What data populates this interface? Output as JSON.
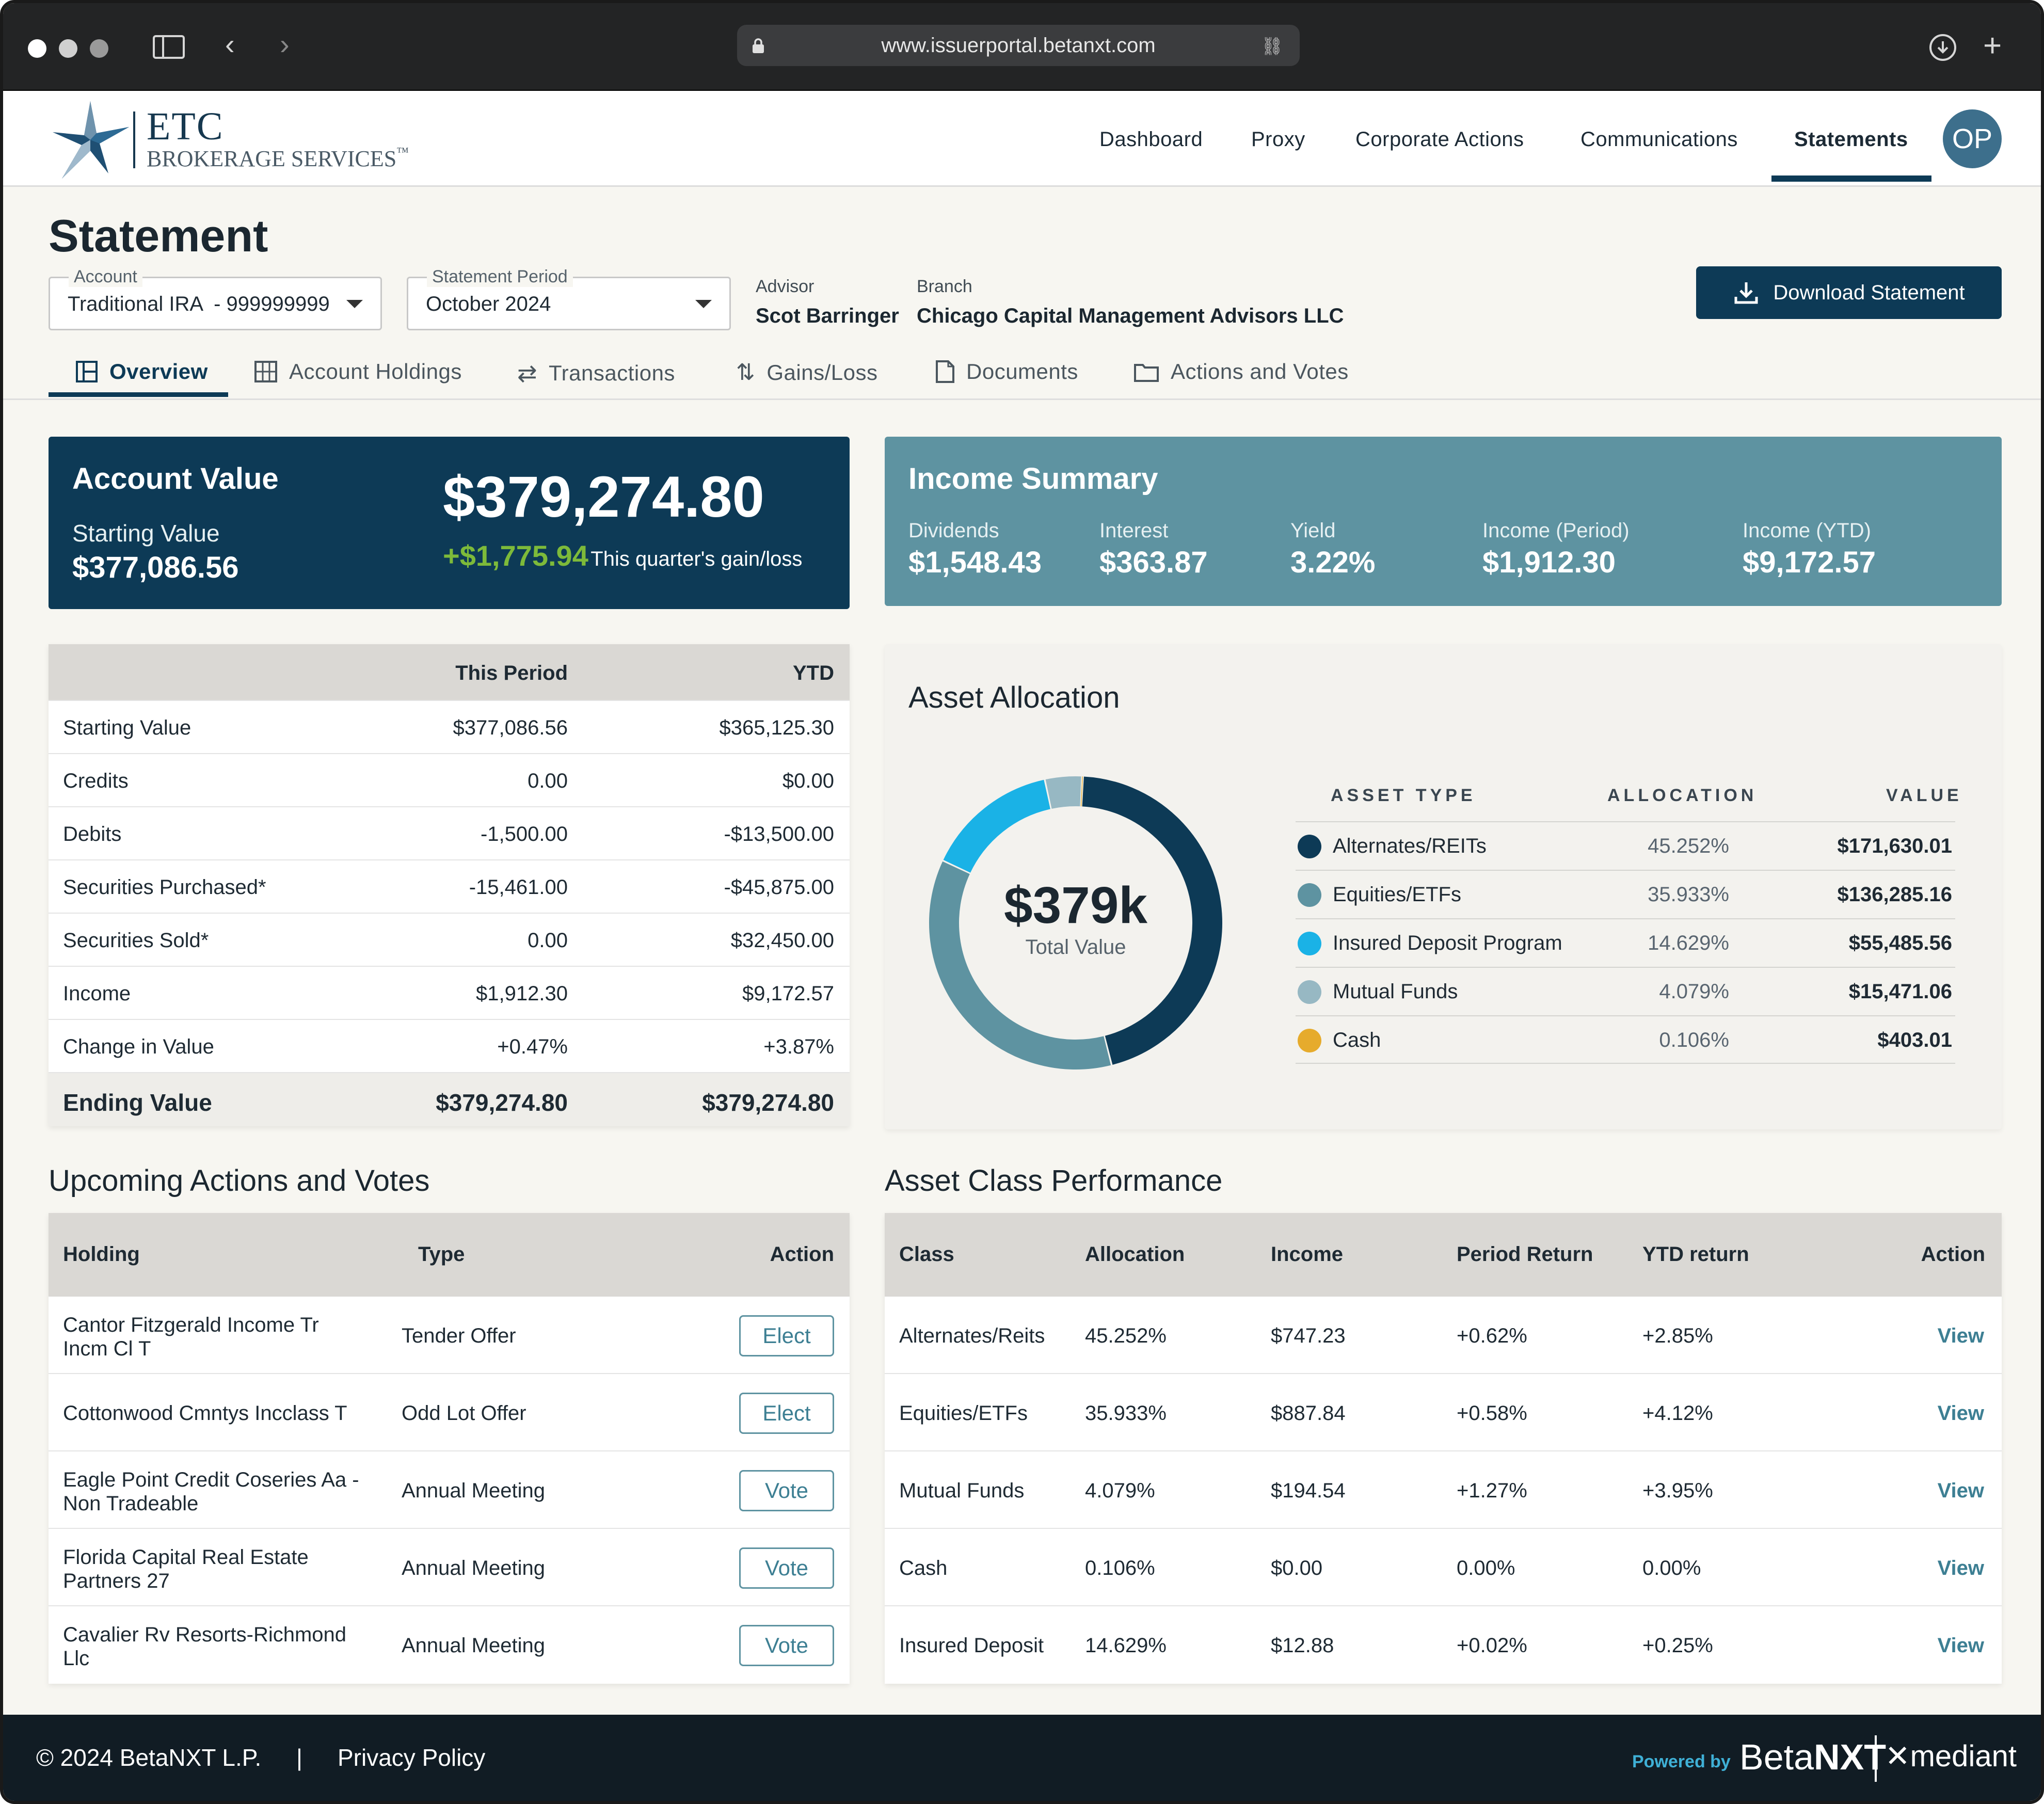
{
  "browser": {
    "url": "www.issuerportal.betanxt.com"
  },
  "brand": {
    "name": "ETC",
    "sub": "BROKERAGE SERVICES",
    "tm": "™"
  },
  "nav": {
    "items": [
      "Dashboard",
      "Proxy",
      "Corporate Actions",
      "Communications",
      "Statements"
    ],
    "active": "Statements",
    "avatar": "OP"
  },
  "page": {
    "title": "Statement"
  },
  "account": {
    "label": "Account",
    "value": "Traditional IRA  - 999999999"
  },
  "period": {
    "label": "Statement Period",
    "value": "October 2024"
  },
  "advisor": {
    "label": "Advisor",
    "value": "Scot Barringer"
  },
  "branch": {
    "label": "Branch",
    "value": "Chicago Capital Management Advisors LLC"
  },
  "download_label": "Download Statement",
  "tabs": [
    "Overview",
    "Account Holdings",
    "Transactions",
    "Gains/Loss",
    "Documents",
    "Actions and Votes"
  ],
  "account_value": {
    "title": "Account Value",
    "starting_label": "Starting Value",
    "starting_value": "$377,086.56",
    "value": "$379,274.80",
    "gain": "+$1,775.94",
    "gain_label": "This quarter's gain/loss"
  },
  "income_summary": {
    "title": "Income Summary",
    "stats": [
      {
        "label": "Dividends",
        "value": "$1,548.43"
      },
      {
        "label": "Interest",
        "value": "$363.87"
      },
      {
        "label": "Yield",
        "value": "3.22%"
      },
      {
        "label": "Income (Period)",
        "value": "$1,912.30"
      },
      {
        "label": "Income (YTD)",
        "value": "$9,172.57"
      }
    ]
  },
  "summary_table": {
    "headers": [
      "",
      "This Period",
      "YTD"
    ],
    "rows": [
      [
        "Starting Value",
        "$377,086.56",
        "$365,125.30"
      ],
      [
        "Credits",
        "0.00",
        "$0.00"
      ],
      [
        "Debits",
        "-1,500.00",
        "-$13,500.00"
      ],
      [
        "Securities Purchased*",
        "-15,461.00",
        "-$45,875.00"
      ],
      [
        "Securities Sold*",
        "0.00",
        "$32,450.00"
      ],
      [
        "Income",
        "$1,912.30",
        "$9,172.57"
      ],
      [
        "Change in Value",
        "+0.47%",
        "+3.87%"
      ]
    ],
    "footer": [
      "Ending Value",
      "$379,274.80",
      "$379,274.80"
    ]
  },
  "asset_allocation": {
    "title": "Asset Allocation",
    "center_value": "$379k",
    "center_label": "Total Value",
    "headers": [
      "ASSET TYPE",
      "ALLOCATION",
      "VALUE"
    ],
    "items": [
      {
        "name": "Alternates/REITs",
        "allocation": "45.252%",
        "value": "$171,630.01",
        "color": "#0d3a56"
      },
      {
        "name": "Equities/ETFs",
        "allocation": "35.933%",
        "value": "$136,285.16",
        "color": "#5e93a1"
      },
      {
        "name": "Insured Deposit Program",
        "allocation": "14.629%",
        "value": "$55,485.56",
        "color": "#1ab2e6"
      },
      {
        "name": "Mutual Funds",
        "allocation": "4.079%",
        "value": "$15,471.06",
        "color": "#97b8c3"
      },
      {
        "name": "Cash",
        "allocation": "0.106%",
        "value": "$403.01",
        "color": "#e6ab2c"
      }
    ]
  },
  "chart_data": {
    "type": "pie",
    "categories": [
      "Alternates/REITs",
      "Equities/ETFs",
      "Insured Deposit Program",
      "Mutual Funds",
      "Cash"
    ],
    "values": [
      45.252,
      35.933,
      14.629,
      4.079,
      0.106
    ],
    "title": "Asset Allocation"
  },
  "upcoming": {
    "title": "Upcoming Actions and Votes",
    "headers": [
      "Holding",
      "Type",
      "Action"
    ],
    "rows": [
      {
        "holding": [
          "Cantor Fitzgerald Income Tr",
          "Incm Cl T"
        ],
        "type": "Tender Offer",
        "action": "Elect"
      },
      {
        "holding": [
          "Cottonwood Cmntys Incclass T",
          ""
        ],
        "type": "Odd Lot Offer",
        "action": "Elect"
      },
      {
        "holding": [
          "Eagle Point Credit Coseries Aa -",
          "Non Tradeable"
        ],
        "type": "Annual Meeting",
        "action": "Vote"
      },
      {
        "holding": [
          "Florida Capital Real Estate",
          "Partners 27"
        ],
        "type": "Annual Meeting",
        "action": "Vote"
      },
      {
        "holding": [
          "Cavalier Rv Resorts-Richmond",
          "Llc"
        ],
        "type": "Annual Meeting",
        "action": "Vote"
      }
    ]
  },
  "performance": {
    "title": "Asset Class Performance",
    "headers": [
      "Class",
      "Allocation",
      "Income",
      "Period Return",
      "YTD return",
      "Action"
    ],
    "rows": [
      [
        "Alternates/Reits",
        "45.252%",
        "$747.23",
        "+0.62%",
        "+2.85%",
        "View"
      ],
      [
        "Equities/ETFs",
        "35.933%",
        "$887.84",
        "+0.58%",
        "+4.12%",
        "View"
      ],
      [
        "Mutual Funds",
        "4.079%",
        "$194.54",
        "+1.27%",
        "+3.95%",
        "View"
      ],
      [
        "Cash",
        "0.106%",
        "$0.00",
        "0.00%",
        "0.00%",
        "View"
      ],
      [
        "Insured Deposit",
        "14.629%",
        "$12.88",
        "+0.02%",
        "+0.25%",
        "View"
      ]
    ]
  },
  "footer": {
    "copyright": "© 2024 BetaNXT L.P.",
    "separator": "|",
    "privacy": "Privacy Policy",
    "powered": "Powered by",
    "beta": "Beta",
    "nxt": "NXT",
    "mediant": "mediant"
  }
}
